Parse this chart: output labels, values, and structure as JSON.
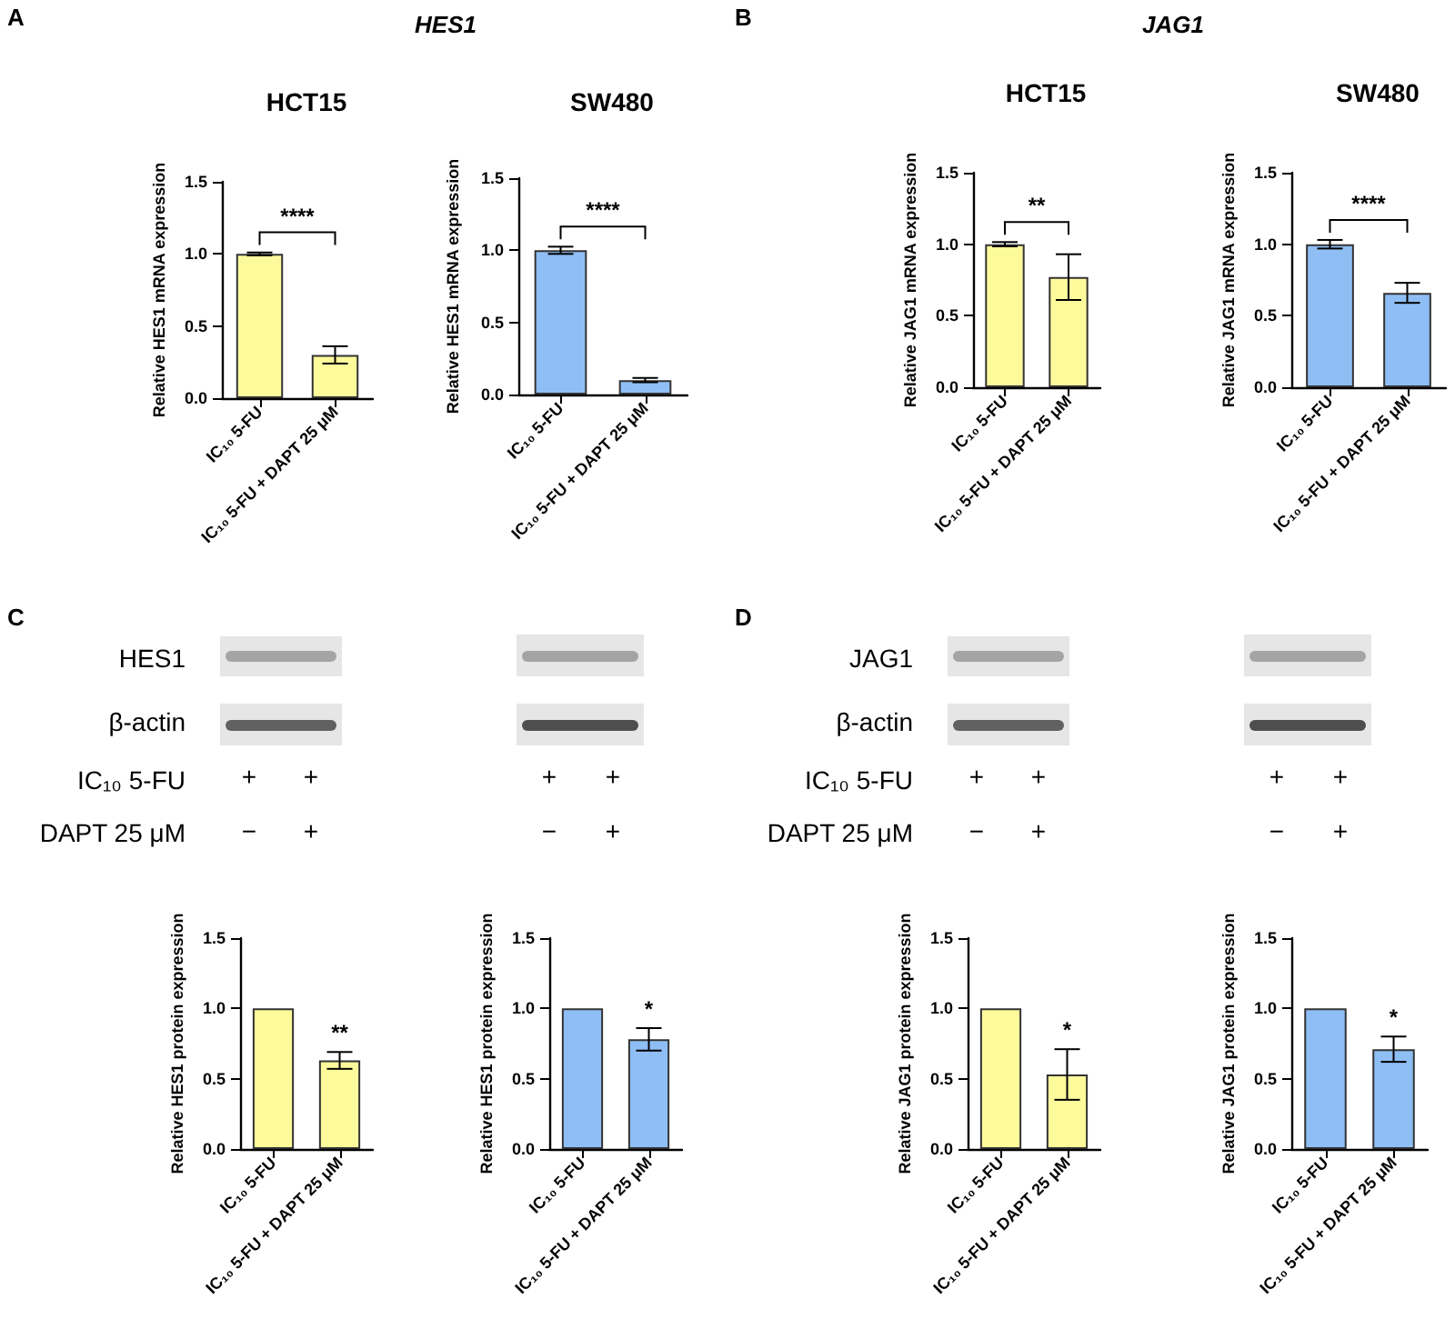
{
  "chart_data": [
    {
      "type": "other",
      "title": "HES1",
      "annotations": [
        "A"
      ]
    },
    {
      "type": "other",
      "title": "JAG1",
      "annotations": [
        "B"
      ]
    },
    {
      "type": "bar",
      "title": "HCT15",
      "ylabel": "Relative HES1 mRNA expression",
      "categories": [
        "IC₁₀ 5-FU",
        "IC₁₀ 5-FU + DAPT 25 μM"
      ],
      "values": [
        1.0,
        0.3
      ],
      "errors": [
        0.01,
        0.06
      ],
      "colors": [
        "#fdfa9c",
        "#fdfa9c"
      ],
      "ylim": [
        0,
        1.5
      ],
      "yticks": [
        {
          "value": 0,
          "label": "0.0"
        },
        {
          "value": 0.5,
          "label": "0.5"
        },
        {
          "value": 1,
          "label": "1.0"
        },
        {
          "value": 1.5,
          "label": "1.5"
        }
      ],
      "grid": false,
      "annotations": [
        "****"
      ]
    },
    {
      "type": "bar",
      "title": "SW480",
      "ylabel": "Relative HES1 mRNA expression",
      "categories": [
        "IC₁₀ 5-FU",
        "IC₁₀ 5-FU + DAPT 25 μM"
      ],
      "values": [
        1.0,
        0.1
      ],
      "errors": [
        0.025,
        0.015
      ],
      "colors": [
        "#8fbef5",
        "#8fbef5"
      ],
      "ylim": [
        0,
        1.5
      ],
      "yticks": [
        {
          "value": 0,
          "label": "0.0"
        },
        {
          "value": 0.5,
          "label": "0.5"
        },
        {
          "value": 1,
          "label": "1.0"
        },
        {
          "value": 1.5,
          "label": "1.5"
        }
      ],
      "grid": false,
      "annotations": [
        "****"
      ]
    },
    {
      "type": "bar",
      "title": "HCT15",
      "ylabel": "Relative JAG1 mRNA expression",
      "categories": [
        "IC₁₀ 5-FU",
        "IC₁₀ 5-FU + DAPT 25 μM"
      ],
      "values": [
        1.0,
        0.77
      ],
      "errors": [
        0.015,
        0.16
      ],
      "colors": [
        "#fdfa9c",
        "#fdfa9c"
      ],
      "ylim": [
        0,
        1.5
      ],
      "yticks": [
        {
          "value": 0,
          "label": "0.0"
        },
        {
          "value": 0.5,
          "label": "0.5"
        },
        {
          "value": 1,
          "label": "1.0"
        },
        {
          "value": 1.5,
          "label": "1.5"
        }
      ],
      "grid": false,
      "annotations": [
        "**"
      ]
    },
    {
      "type": "bar",
      "title": "SW480",
      "ylabel": "Relative JAG1 mRNA expression",
      "categories": [
        "IC₁₀ 5-FU",
        "IC₁₀ 5-FU + DAPT 25 μM"
      ],
      "values": [
        1.0,
        0.66
      ],
      "errors": [
        0.03,
        0.07
      ],
      "colors": [
        "#8fbef5",
        "#8fbef5"
      ],
      "ylim": [
        0,
        1.5
      ],
      "yticks": [
        {
          "value": 0,
          "label": "0.0"
        },
        {
          "value": 0.5,
          "label": "0.5"
        },
        {
          "value": 1,
          "label": "1.0"
        },
        {
          "value": 1.5,
          "label": "1.5"
        }
      ],
      "grid": false,
      "annotations": [
        "****"
      ]
    },
    {
      "type": "other",
      "annotations": [
        "C",
        "HES1",
        "β-actin",
        "IC₁₀ 5-FU",
        "DAPT 25 μM",
        "+",
        "+",
        "−",
        "+",
        "+",
        "+",
        "−",
        "+"
      ]
    },
    {
      "type": "other",
      "annotations": [
        "D",
        "JAG1",
        "β-actin",
        "IC₁₀ 5-FU",
        "DAPT 25 μM",
        "+",
        "+",
        "−",
        "+",
        "+",
        "+",
        "−",
        "+"
      ]
    },
    {
      "type": "bar",
      "ylabel": "Relative HES1 protein expression",
      "categories": [
        "IC₁₀ 5-FU",
        "IC₁₀ 5-FU + DAPT 25 μM"
      ],
      "values": [
        1.0,
        0.63
      ],
      "errors": [
        null,
        0.06
      ],
      "colors": [
        "#fdfa9c",
        "#fdfa9c"
      ],
      "ylim": [
        0,
        1.5
      ],
      "yticks": [
        {
          "value": 0,
          "label": "0.0"
        },
        {
          "value": 0.5,
          "label": "0.5"
        },
        {
          "value": 1,
          "label": "1.0"
        },
        {
          "value": 1.5,
          "label": "1.5"
        }
      ],
      "grid": false,
      "annotations": [
        "**"
      ]
    },
    {
      "type": "bar",
      "ylabel": "Relative HES1 protein expression",
      "categories": [
        "IC₁₀ 5-FU",
        "IC₁₀ 5-FU + DAPT 25 μM"
      ],
      "values": [
        1.0,
        0.78
      ],
      "errors": [
        null,
        0.08
      ],
      "colors": [
        "#8fbef5",
        "#8fbef5"
      ],
      "ylim": [
        0,
        1.5
      ],
      "yticks": [
        {
          "value": 0,
          "label": "0.0"
        },
        {
          "value": 0.5,
          "label": "0.5"
        },
        {
          "value": 1,
          "label": "1.0"
        },
        {
          "value": 1.5,
          "label": "1.5"
        }
      ],
      "grid": false,
      "annotations": [
        "*"
      ]
    },
    {
      "type": "bar",
      "ylabel": "Relative JAG1 protein expression",
      "categories": [
        "IC₁₀ 5-FU",
        "IC₁₀ 5-FU + DAPT 25 μM"
      ],
      "values": [
        1.0,
        0.53
      ],
      "errors": [
        null,
        0.18
      ],
      "colors": [
        "#fdfa9c",
        "#fdfa9c"
      ],
      "ylim": [
        0,
        1.5
      ],
      "yticks": [
        {
          "value": 0,
          "label": "0.0"
        },
        {
          "value": 0.5,
          "label": "0.5"
        },
        {
          "value": 1,
          "label": "1.0"
        },
        {
          "value": 1.5,
          "label": "1.5"
        }
      ],
      "grid": false,
      "annotations": [
        "*"
      ]
    },
    {
      "type": "bar",
      "ylabel": "Relative JAG1 protein expression",
      "categories": [
        "IC₁₀ 5-FU",
        "IC₁₀ 5-FU + DAPT 25 μM"
      ],
      "values": [
        1.0,
        0.71
      ],
      "errors": [
        null,
        0.09
      ],
      "colors": [
        "#8fbef5",
        "#8fbef5"
      ],
      "ylim": [
        0,
        1.5
      ],
      "yticks": [
        {
          "value": 0,
          "label": "0.0"
        },
        {
          "value": 0.5,
          "label": "0.5"
        },
        {
          "value": 1,
          "label": "1.0"
        },
        {
          "value": 1.5,
          "label": "1.5"
        }
      ],
      "grid": false,
      "annotations": [
        "*"
      ]
    }
  ]
}
